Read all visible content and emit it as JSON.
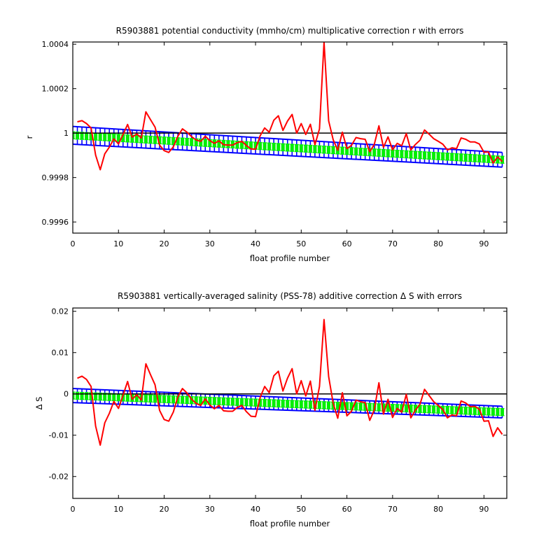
{
  "chart_data": [
    {
      "type": "line",
      "title": "R5903881 potential conductivity (mmho/cm) multiplicative correction r with errors",
      "xlabel": "float profile number",
      "ylabel": "r",
      "xlim": [
        0,
        95
      ],
      "ylim": [
        0.99955,
        1.00041
      ],
      "xticks": [
        0,
        10,
        20,
        30,
        40,
        50,
        60,
        70,
        80,
        90
      ],
      "xtick_labels": [
        "0",
        "10",
        "20",
        "30",
        "40",
        "50",
        "60",
        "70",
        "80",
        "90"
      ],
      "yticks": [
        0.9996,
        0.9998,
        1,
        1.0002,
        1.0004
      ],
      "ytick_labels": [
        "0.9996",
        "0.9998",
        "1",
        "1.0002",
        "1.0004"
      ],
      "reference_line": 1,
      "fit": {
        "x_start": 0,
        "x_end": 94,
        "center_start": 0.99999,
        "center_end": 0.99988,
        "err_start": 4e-05,
        "err_end": 3.3e-05
      },
      "series": [
        {
          "x": [
            1,
            2,
            3,
            4,
            5,
            6,
            7,
            8,
            9,
            10,
            11,
            12,
            13,
            14,
            15,
            16,
            17,
            18,
            19,
            20,
            21,
            22,
            23,
            24,
            25,
            26,
            27,
            28,
            29,
            30,
            31,
            32,
            33,
            34,
            35,
            36,
            37,
            38,
            39,
            40,
            41,
            42,
            43,
            44,
            45,
            46,
            47,
            48,
            49,
            50,
            51,
            52,
            53,
            54,
            55,
            56,
            57,
            58,
            59,
            60,
            61,
            62,
            63,
            64,
            65,
            66,
            67,
            68,
            69,
            70,
            71,
            72,
            73,
            74,
            75,
            76,
            77,
            78,
            79,
            80,
            81,
            82,
            83,
            84,
            85,
            86,
            87,
            88,
            89,
            90,
            91,
            92,
            93,
            94
          ],
          "values": [
            1.000051,
            1.000056,
            1.000043,
            1.000023,
            0.999901,
            0.999835,
            0.999907,
            0.999937,
            0.999974,
            0.999951,
            0.999994,
            1.000039,
            0.999982,
            0.999996,
            0.999978,
            1.000096,
            1.000061,
            1.000027,
            0.999946,
            0.999921,
            0.999913,
            0.999938,
            0.999986,
            1.000019,
            1.000004,
            0.999984,
            0.999969,
            0.999963,
            0.999986,
            0.999966,
            0.999954,
            0.999965,
            0.999948,
            0.999946,
            0.999946,
            0.999957,
            0.999963,
            0.999944,
            0.999929,
            0.999927,
            0.999988,
            1.000023,
            1.000004,
            1.000058,
            1.000078,
            1.000012,
            1.000054,
            1.000084,
            1.0,
            1.000043,
            0.999994,
            1.00004,
            0.999948,
            1.000019,
            1.00041,
            1.000055,
            0.99997,
            0.999923,
            1.000004,
            0.99993,
            0.999945,
            0.99998,
            0.999975,
            0.999972,
            0.999916,
            0.999949,
            1.000033,
            0.999936,
            0.999983,
            0.999925,
            0.999954,
            0.999943,
            0.999998,
            0.999924,
            0.999949,
            0.999968,
            1.000014,
            0.999995,
            0.999975,
            0.999963,
            0.99995,
            0.999924,
            0.999934,
            0.99993,
            0.999978,
            0.999972,
            0.99996,
            0.99996,
            0.999951,
            0.999914,
            0.999915,
            0.999865,
            0.999893,
            0.999872
          ]
        }
      ]
    },
    {
      "type": "line",
      "title": "R5903881 vertically-averaged salinity (PSS-78) additive correction Δ S with errors",
      "xlabel": "float profile number",
      "ylabel": "Δ S",
      "xlim": [
        0,
        95
      ],
      "ylim": [
        -0.0253,
        0.0208
      ],
      "xticks": [
        0,
        10,
        20,
        30,
        40,
        50,
        60,
        70,
        80,
        90
      ],
      "xtick_labels": [
        "0",
        "10",
        "20",
        "30",
        "40",
        "50",
        "60",
        "70",
        "80",
        "90"
      ],
      "yticks": [
        -0.02,
        -0.01,
        0,
        0.01,
        0.02
      ],
      "ytick_labels": [
        "-0.02",
        "-0.01",
        "0",
        "0.01",
        "0.02"
      ],
      "reference_line": 0,
      "fit": {
        "x_start": 0,
        "x_end": 94,
        "center_start": -0.0004,
        "center_end": -0.0044,
        "err_start": 0.0017,
        "err_end": 0.0014
      },
      "series": [
        {
          "x": [
            1,
            2,
            3,
            4,
            5,
            6,
            7,
            8,
            9,
            10,
            11,
            12,
            13,
            14,
            15,
            16,
            17,
            18,
            19,
            20,
            21,
            22,
            23,
            24,
            25,
            26,
            27,
            28,
            29,
            30,
            31,
            32,
            33,
            34,
            35,
            36,
            37,
            38,
            39,
            40,
            41,
            42,
            43,
            44,
            45,
            46,
            47,
            48,
            49,
            50,
            51,
            52,
            53,
            54,
            55,
            56,
            57,
            58,
            59,
            60,
            61,
            62,
            63,
            64,
            65,
            66,
            67,
            68,
            69,
            70,
            71,
            72,
            73,
            74,
            75,
            76,
            77,
            78,
            79,
            80,
            81,
            82,
            83,
            84,
            85,
            86,
            87,
            88,
            89,
            90,
            91,
            92,
            93,
            94
          ],
          "values": [
            0.0038,
            0.0043,
            0.0035,
            0.0018,
            -0.0078,
            -0.0124,
            -0.007,
            -0.0047,
            -0.0018,
            -0.0035,
            -0.0003,
            0.003,
            -0.0013,
            -0.0002,
            -0.0015,
            0.0073,
            0.0047,
            0.0022,
            -0.004,
            -0.0062,
            -0.0066,
            -0.0044,
            -0.0007,
            0.0013,
            0.0002,
            -0.0013,
            -0.0023,
            -0.0028,
            -0.0012,
            -0.0027,
            -0.0036,
            -0.0028,
            -0.0041,
            -0.0042,
            -0.0042,
            -0.0033,
            -0.0028,
            -0.0043,
            -0.0054,
            -0.0055,
            -0.0009,
            0.0018,
            0.0003,
            0.0044,
            0.0055,
            0.0007,
            0.0038,
            0.0061,
            0.0,
            0.0032,
            -0.0005,
            0.0031,
            -0.004,
            0.0018,
            0.018,
            0.0042,
            -0.0023,
            -0.0059,
            0.0003,
            -0.0053,
            -0.0042,
            -0.0015,
            -0.0019,
            -0.0021,
            -0.0064,
            -0.0039,
            0.0027,
            -0.0049,
            -0.0013,
            -0.0057,
            -0.0035,
            -0.0044,
            -0.0001,
            -0.0058,
            -0.0039,
            -0.0025,
            0.0011,
            -0.0004,
            -0.0019,
            -0.0028,
            -0.0038,
            -0.0058,
            -0.0051,
            -0.0053,
            -0.0017,
            -0.0022,
            -0.0031,
            -0.003,
            -0.0037,
            -0.0066,
            -0.0065,
            -0.0103,
            -0.0082,
            -0.0098
          ]
        }
      ]
    }
  ],
  "colors": {
    "data_line": "#ff0000",
    "fit_line": "#0000ff",
    "fit_band": "#00ee00",
    "reference": "#000000",
    "axes": "#000000"
  }
}
